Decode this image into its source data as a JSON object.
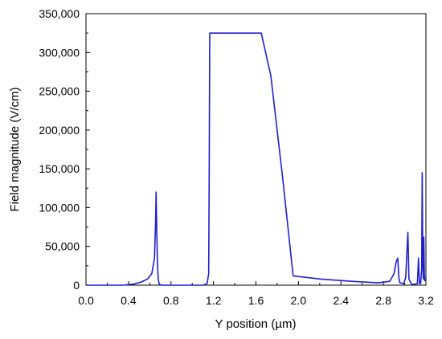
{
  "chart_data": {
    "type": "line",
    "xlabel": "Y position (µm)",
    "ylabel": "Field magnitude (V/cm)",
    "xlim": [
      0.0,
      3.2
    ],
    "ylim": [
      0,
      350000
    ],
    "xticks": [
      "0.0",
      "0.4",
      "0.8",
      "1.2",
      "1.6",
      "2.0",
      "2.4",
      "2.8",
      "3.2"
    ],
    "yticks": [
      "0",
      "50,000",
      "100,000",
      "150,000",
      "200,000",
      "250,000",
      "300,000",
      "350,000"
    ],
    "grid": false,
    "line_color": "#1f1fcf",
    "series": [
      {
        "x": [
          0.0,
          0.35,
          0.45,
          0.52,
          0.58,
          0.62,
          0.645,
          0.655,
          0.66,
          0.665,
          0.672,
          0.68,
          0.69,
          0.72,
          1.1,
          1.14,
          1.155,
          1.16,
          1.165,
          1.17,
          1.175,
          1.65,
          1.74,
          1.85,
          1.95,
          2.2,
          2.5,
          2.75,
          2.86,
          2.9,
          2.92,
          2.935,
          2.945,
          2.955,
          2.99,
          3.01,
          3.03,
          3.035,
          3.04,
          3.06,
          3.08,
          3.12,
          3.13,
          3.135,
          3.14,
          3.15,
          3.16,
          3.165,
          3.17,
          3.175,
          3.18,
          3.185,
          3.19
        ],
        "y": [
          0,
          0,
          1500,
          4000,
          8000,
          15000,
          35000,
          80000,
          120000,
          80000,
          30000,
          8000,
          1000,
          0,
          0,
          2000,
          15000,
          150000,
          325000,
          325000,
          325000,
          325000,
          270000,
          140000,
          12000,
          8000,
          5000,
          3000,
          5000,
          15000,
          30000,
          35000,
          10000,
          3000,
          2000,
          10000,
          68000,
          40000,
          8000,
          2000,
          1000,
          2000,
          35000,
          15000,
          2000,
          2000,
          20000,
          145000,
          40000,
          8000,
          62000,
          15000,
          5000
        ]
      }
    ]
  }
}
